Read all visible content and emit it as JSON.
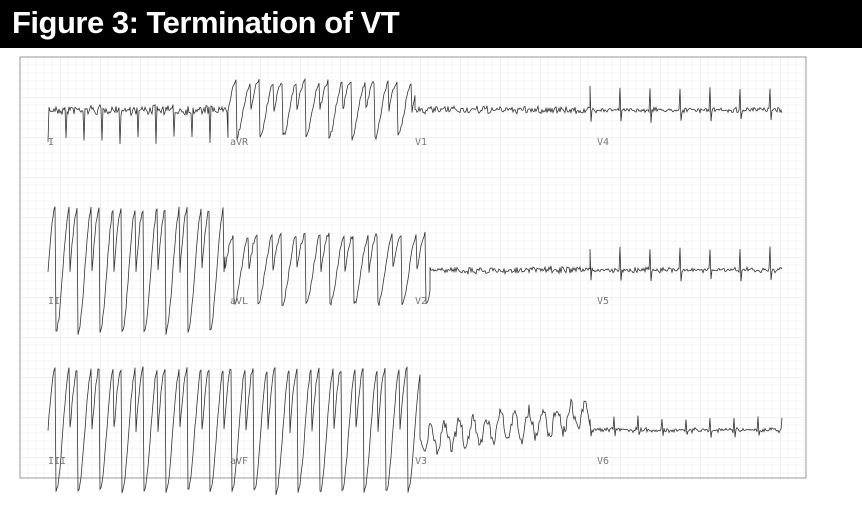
{
  "header": {
    "title": "Figure 3: Termination of VT"
  },
  "leads": [
    [
      "I",
      "aVR",
      "V1",
      "V4"
    ],
    [
      "II",
      "aVL",
      "V2",
      "V5"
    ],
    [
      "III",
      "aVF",
      "V3",
      "V6"
    ]
  ]
}
